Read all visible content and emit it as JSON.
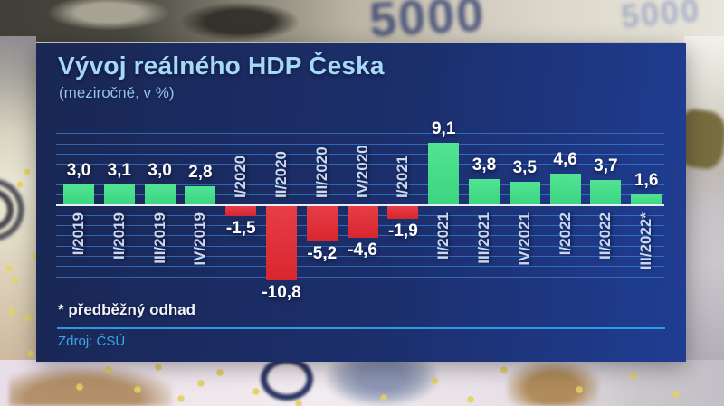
{
  "background": {
    "denomination": "5000"
  },
  "panel": {
    "title": "Vývoj reálného HDP Česka",
    "subtitle": "(meziročně, v %)",
    "footnote": "* předběžný odhad",
    "source_label": "Zdroj: ČSÚ"
  },
  "colors": {
    "panel_navy": "#1c2f6c",
    "positive_green": "#3ee087",
    "negative_red": "#e42831",
    "gridline_blue": "#3e8ce4",
    "axis_white": "#e8eef8",
    "title_blue": "#a6d8f7",
    "source_cyan": "#3aa6e8"
  },
  "chart_data": {
    "type": "bar",
    "title": "Vývoj reálného HDP Česka",
    "subtitle": "(meziročně, v %)",
    "unit": "%",
    "categories": [
      "I/2019",
      "II/2019",
      "III/2019",
      "IV/2019",
      "I/2020",
      "II/2020",
      "III/2020",
      "IV/2020",
      "I/2021",
      "II/2021",
      "III/2021",
      "IV/2021",
      "I/2022",
      "II/2022",
      "III/2022*"
    ],
    "values": [
      3.0,
      3.1,
      3.0,
      2.8,
      -1.5,
      -10.8,
      -5.2,
      -4.6,
      -1.9,
      9.1,
      3.8,
      3.5,
      4.6,
      3.7,
      1.6
    ],
    "display_values": [
      "3,0",
      "3,1",
      "3,0",
      "2,8",
      "-1,5",
      "-10,8",
      "-5,2",
      "-4,6",
      "-1,9",
      "9,1",
      "3,8",
      "3,5",
      "4,6",
      "3,7",
      "1,6"
    ],
    "positive_color": "#3ee087",
    "negative_color": "#e42831",
    "ylim": [
      -12,
      10.5
    ],
    "gridlines": true,
    "legend": "none",
    "value_labels": "on",
    "category_labels_rotated_deg": -90
  }
}
